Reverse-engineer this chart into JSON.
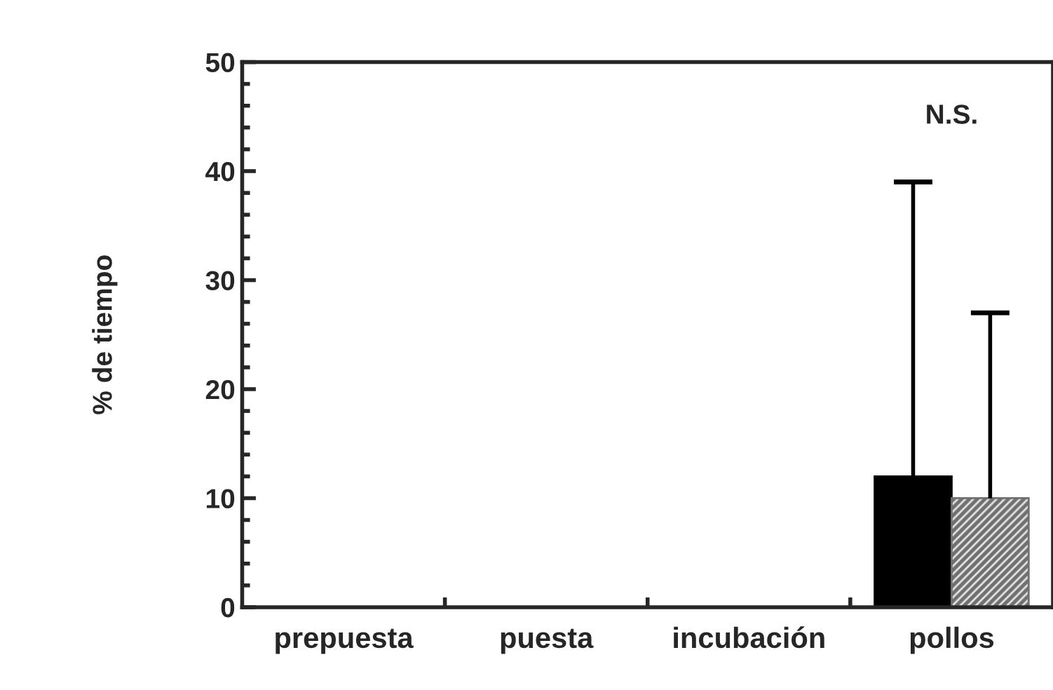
{
  "chart_data": {
    "type": "bar",
    "ylabel": "% de tiempo",
    "categories": [
      "prepuesta",
      "puesta",
      "incubación",
      "pollos"
    ],
    "series": [
      {
        "color": "#000000",
        "values": [
          0,
          0,
          0,
          12
        ],
        "errors": [
          null,
          null,
          null,
          [
            12,
            39
          ]
        ]
      },
      {
        "color": "#707070",
        "values": [
          0,
          0,
          0,
          10
        ],
        "errors": [
          null,
          null,
          null,
          [
            10,
            27
          ]
        ]
      }
    ],
    "ylim": [
      0,
      50
    ],
    "yticks": [
      0,
      10,
      20,
      30,
      40,
      50
    ],
    "grid": false,
    "legend": false,
    "annotations": [
      "N.S."
    ]
  }
}
